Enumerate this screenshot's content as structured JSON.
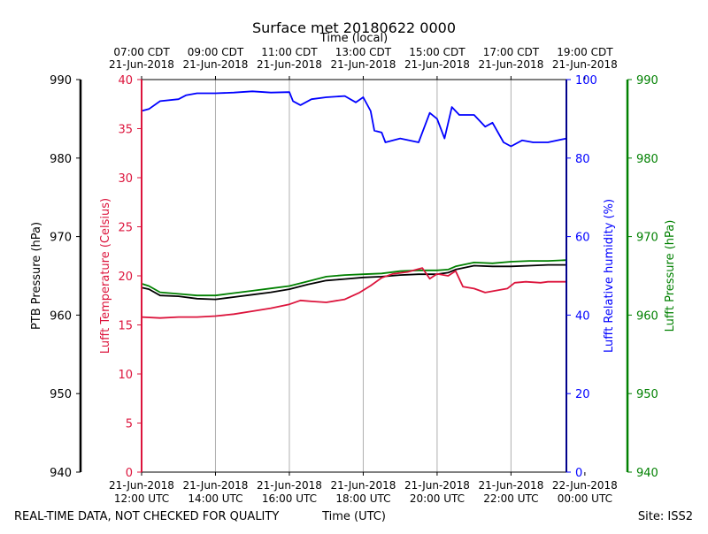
{
  "title": "Surface met 20180622 0000",
  "footer": {
    "left": "REAL-TIME DATA, NOT CHECKED FOR QUALITY",
    "center": "Time (UTC)",
    "right": "Site: ISS2"
  },
  "colors": {
    "ptb": "#000000",
    "temp": "#dc143c",
    "rh": "#0000ff",
    "lufft_p": "#008000",
    "grid": "#b0b0b0"
  },
  "chart_data": {
    "type": "line",
    "x_range_utc_hours": [
      12,
      23.5
    ],
    "grid_x": true,
    "top_axis": {
      "label": "Time (local)",
      "ticks": [
        {
          "h": 12,
          "line1": "07:00 CDT",
          "line2": "21-Jun-2018"
        },
        {
          "h": 14,
          "line1": "09:00 CDT",
          "line2": "21-Jun-2018"
        },
        {
          "h": 16,
          "line1": "11:00 CDT",
          "line2": "21-Jun-2018"
        },
        {
          "h": 18,
          "line1": "13:00 CDT",
          "line2": "21-Jun-2018"
        },
        {
          "h": 20,
          "line1": "15:00 CDT",
          "line2": "21-Jun-2018"
        },
        {
          "h": 22,
          "line1": "17:00 CDT",
          "line2": "21-Jun-2018"
        },
        {
          "h": 24,
          "line1": "19:00 CDT",
          "line2": "21-Jun-2018"
        }
      ]
    },
    "bottom_axis": {
      "ticks": [
        {
          "h": 12,
          "line1": "21-Jun-2018",
          "line2": "12:00 UTC"
        },
        {
          "h": 14,
          "line1": "21-Jun-2018",
          "line2": "14:00 UTC"
        },
        {
          "h": 16,
          "line1": "21-Jun-2018",
          "line2": "16:00 UTC"
        },
        {
          "h": 18,
          "line1": "21-Jun-2018",
          "line2": "18:00 UTC"
        },
        {
          "h": 20,
          "line1": "21-Jun-2018",
          "line2": "20:00 UTC"
        },
        {
          "h": 22,
          "line1": "21-Jun-2018",
          "line2": "22:00 UTC"
        },
        {
          "h": 24,
          "line1": "22-Jun-2018",
          "line2": "00:00 UTC"
        }
      ]
    },
    "axes": {
      "ptb": {
        "label": "PTB Pressure (hPa)",
        "range": [
          940,
          990
        ],
        "ticks": [
          940,
          950,
          960,
          970,
          980,
          990
        ]
      },
      "temp": {
        "label": "Lufft Temperature (Celsius)",
        "range": [
          0,
          40
        ],
        "ticks": [
          0,
          5,
          10,
          15,
          20,
          25,
          30,
          35,
          40
        ]
      },
      "rh": {
        "label": "Lufft Relative humidity (%)",
        "range": [
          0,
          100
        ],
        "ticks": [
          0,
          20,
          40,
          60,
          80,
          100
        ]
      },
      "lufft_p": {
        "label": "Lufft Pressure (hPa)",
        "range": [
          940,
          990
        ],
        "ticks": [
          940,
          950,
          960,
          970,
          980,
          990
        ]
      }
    },
    "series": [
      {
        "name": "PTB Pressure",
        "axis": "ptb",
        "color": "#000000",
        "points": [
          [
            12,
            963.5
          ],
          [
            12.2,
            963.3
          ],
          [
            12.5,
            962.5
          ],
          [
            13,
            962.4
          ],
          [
            13.5,
            962.1
          ],
          [
            14,
            962.0
          ],
          [
            14.5,
            962.3
          ],
          [
            15,
            962.6
          ],
          [
            15.5,
            962.9
          ],
          [
            16,
            963.3
          ],
          [
            16.5,
            963.9
          ],
          [
            17,
            964.4
          ],
          [
            17.5,
            964.6
          ],
          [
            18,
            964.8
          ],
          [
            18.5,
            964.9
          ],
          [
            19,
            965.1
          ],
          [
            19.5,
            965.2
          ],
          [
            20,
            965.2
          ],
          [
            20.3,
            965.4
          ],
          [
            20.5,
            965.8
          ],
          [
            21,
            966.3
          ],
          [
            21.5,
            966.2
          ],
          [
            22,
            966.2
          ],
          [
            22.5,
            966.3
          ],
          [
            23,
            966.4
          ],
          [
            23.5,
            966.4
          ]
        ]
      },
      {
        "name": "Lufft Pressure",
        "axis": "lufft_p",
        "color": "#008000",
        "points": [
          [
            12,
            964.0
          ],
          [
            12.2,
            963.7
          ],
          [
            12.5,
            962.9
          ],
          [
            13,
            962.7
          ],
          [
            13.5,
            962.5
          ],
          [
            14,
            962.5
          ],
          [
            14.5,
            962.8
          ],
          [
            15,
            963.1
          ],
          [
            15.5,
            963.4
          ],
          [
            16,
            963.7
          ],
          [
            16.5,
            964.3
          ],
          [
            17,
            964.9
          ],
          [
            17.5,
            965.1
          ],
          [
            18,
            965.2
          ],
          [
            18.5,
            965.3
          ],
          [
            19,
            965.6
          ],
          [
            19.5,
            965.7
          ],
          [
            20,
            965.7
          ],
          [
            20.3,
            965.8
          ],
          [
            20.5,
            966.2
          ],
          [
            21,
            966.7
          ],
          [
            21.5,
            966.6
          ],
          [
            22,
            966.8
          ],
          [
            22.5,
            966.9
          ],
          [
            23,
            966.9
          ],
          [
            23.5,
            967.0
          ]
        ]
      },
      {
        "name": "Lufft Temperature",
        "axis": "temp",
        "color": "#dc143c",
        "points": [
          [
            12,
            15.8
          ],
          [
            12.5,
            15.7
          ],
          [
            13,
            15.8
          ],
          [
            13.5,
            15.8
          ],
          [
            14,
            15.9
          ],
          [
            14.5,
            16.1
          ],
          [
            15,
            16.4
          ],
          [
            15.5,
            16.7
          ],
          [
            16,
            17.1
          ],
          [
            16.3,
            17.5
          ],
          [
            16.6,
            17.4
          ],
          [
            17,
            17.3
          ],
          [
            17.5,
            17.6
          ],
          [
            17.9,
            18.3
          ],
          [
            18.2,
            19.0
          ],
          [
            18.5,
            19.8
          ],
          [
            18.8,
            20.2
          ],
          [
            19.2,
            20.4
          ],
          [
            19.6,
            20.8
          ],
          [
            19.8,
            19.7
          ],
          [
            20,
            20.2
          ],
          [
            20.3,
            20.0
          ],
          [
            20.5,
            20.5
          ],
          [
            20.7,
            18.9
          ],
          [
            21,
            18.7
          ],
          [
            21.3,
            18.3
          ],
          [
            21.6,
            18.5
          ],
          [
            21.9,
            18.7
          ],
          [
            22.1,
            19.3
          ],
          [
            22.4,
            19.4
          ],
          [
            22.8,
            19.3
          ],
          [
            23,
            19.4
          ],
          [
            23.5,
            19.4
          ]
        ]
      },
      {
        "name": "Lufft Relative humidity",
        "axis": "rh",
        "color": "#0000ff",
        "points": [
          [
            12,
            92.0
          ],
          [
            12.2,
            92.5
          ],
          [
            12.5,
            94.5
          ],
          [
            13,
            95.0
          ],
          [
            13.2,
            96.0
          ],
          [
            13.5,
            96.5
          ],
          [
            14,
            96.5
          ],
          [
            14.5,
            96.7
          ],
          [
            15,
            97.0
          ],
          [
            15.5,
            96.7
          ],
          [
            16,
            96.8
          ],
          [
            16.1,
            94.5
          ],
          [
            16.3,
            93.5
          ],
          [
            16.6,
            95.0
          ],
          [
            17,
            95.5
          ],
          [
            17.5,
            95.8
          ],
          [
            17.8,
            94.2
          ],
          [
            18,
            95.5
          ],
          [
            18.2,
            92.0
          ],
          [
            18.3,
            87.0
          ],
          [
            18.5,
            86.5
          ],
          [
            18.6,
            84.0
          ],
          [
            19,
            85.0
          ],
          [
            19.5,
            84.0
          ],
          [
            19.7,
            89.0
          ],
          [
            19.8,
            91.5
          ],
          [
            20,
            90.0
          ],
          [
            20.2,
            85.0
          ],
          [
            20.4,
            93.0
          ],
          [
            20.6,
            91.0
          ],
          [
            21,
            91.0
          ],
          [
            21.3,
            88.0
          ],
          [
            21.5,
            89.0
          ],
          [
            21.8,
            84.0
          ],
          [
            22,
            83.0
          ],
          [
            22.3,
            84.5
          ],
          [
            22.6,
            84.0
          ],
          [
            23,
            84.0
          ],
          [
            23.5,
            85.0
          ]
        ]
      }
    ]
  }
}
